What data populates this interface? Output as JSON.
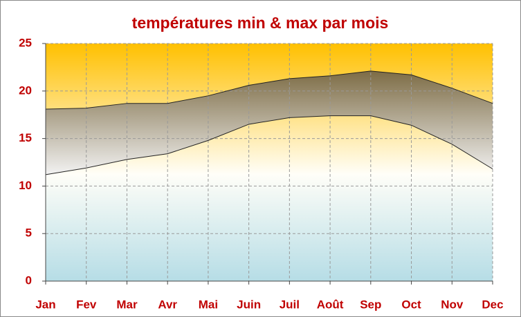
{
  "chart_data": {
    "type": "area",
    "title": "températures min & max par mois",
    "categories": [
      "Jan",
      "Fev",
      "Mar",
      "Avr",
      "Mai",
      "Juin",
      "Juil",
      "Août",
      "Sep",
      "Oct",
      "Nov",
      "Dec"
    ],
    "series": [
      {
        "values": [
          11.2,
          11.9,
          12.8,
          13.4,
          14.8,
          16.5,
          17.2,
          17.4,
          17.4,
          16.4,
          14.4,
          11.8
        ]
      },
      {
        "values": [
          18.1,
          18.2,
          18.7,
          18.7,
          19.5,
          20.6,
          21.3,
          21.6,
          22.1,
          21.7,
          20.3,
          18.7
        ]
      }
    ],
    "color": "#7a6a48",
    "ylim": [
      0,
      25
    ],
    "yticks": [
      0,
      5,
      10,
      15,
      20,
      25
    ],
    "grid": true
  }
}
